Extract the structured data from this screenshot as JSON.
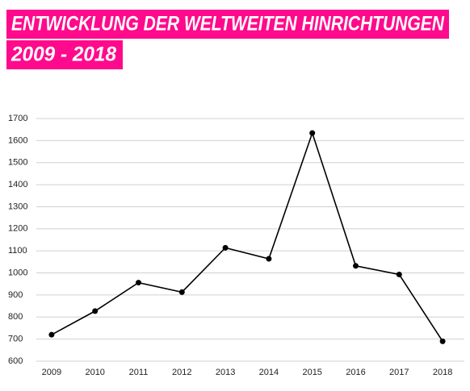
{
  "chart_data": {
    "type": "line",
    "title": "ENTWICKLUNG DER WELTWEITEN HINRICHTUNGEN",
    "subtitle": "2009 - 2018",
    "categories": [
      "2009",
      "2010",
      "2011",
      "2012",
      "2013",
      "2014",
      "2015",
      "2016",
      "2017",
      "2018"
    ],
    "values": [
      720,
      827,
      956,
      913,
      1114,
      1064,
      1634,
      1032,
      993,
      690
    ],
    "color": "#000000",
    "ylim": [
      600,
      1700
    ],
    "yticks": [
      600,
      700,
      800,
      900,
      1000,
      1100,
      1200,
      1300,
      1400,
      1500,
      1600,
      1700
    ],
    "grid": true
  }
}
